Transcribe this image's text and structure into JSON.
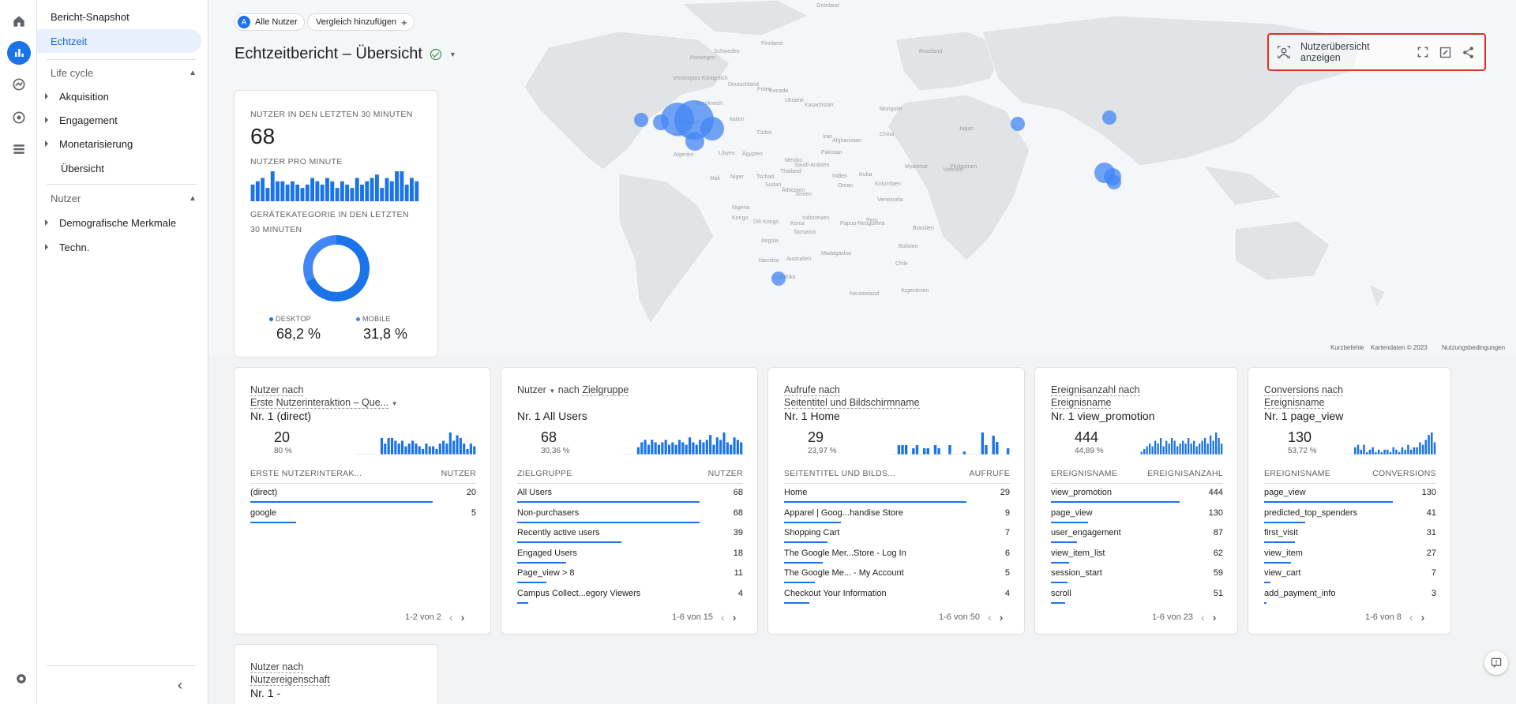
{
  "nav": {
    "snapshot": "Bericht-Snapshot",
    "realtime": "Echtzeit",
    "lifecycle": "Life cycle",
    "acquisition": "Akquisition",
    "engagement": "Engagement",
    "monetization": "Monetarisierung",
    "overview": "Übersicht",
    "users": "Nutzer",
    "demographics": "Demografische Merkmale",
    "tech": "Techn."
  },
  "header": {
    "segment_badge": "A",
    "segment": "Alle Nutzer",
    "compare": "Vergleich hinzufügen",
    "title": "Echtzeitbericht – Übersicht",
    "user_overview": "Nutzerübersicht anzeigen"
  },
  "map": {
    "footer_shortcuts": "Kurzbefehle",
    "footer_data": "Kartendaten © 2023",
    "footer_terms": "Nutzungsbedingungen",
    "labels": [
      "Grönland",
      "Schweden",
      "Finnland",
      "Norwegen",
      "Vereinigtes Königreich",
      "Deutschland",
      "Polen",
      "Ukraine",
      "Frankreich",
      "Spanien",
      "Italien",
      "Türkei",
      "Kasachstan",
      "Mongolei",
      "China",
      "Japan",
      "Iran",
      "Afghanistan",
      "Pakistan",
      "Indien",
      "Thailand",
      "Indonesien",
      "Papua-Neuguinea",
      "Australien",
      "Neuseeland",
      "Kanada",
      "USA",
      "Mexiko",
      "Kuba",
      "Venezuela",
      "Kolumbien",
      "Peru",
      "Brasilien",
      "Bolivien",
      "Chile",
      "Argentinien",
      "Algerien",
      "Libyen",
      "Ägypten",
      "Mali",
      "Niger",
      "Tschad",
      "Sudan",
      "Nigeria",
      "Äthiopien",
      "Kenia",
      "Tansania",
      "Angola",
      "Namibia",
      "Südafrika",
      "Madagaskar",
      "Saudi-Arabien",
      "Jemen",
      "Russland",
      "Oman",
      "Philippinen",
      "Vietnam",
      "Myanmar",
      "Marokko",
      "Kongo",
      "DR Kongo"
    ]
  },
  "kpi": {
    "users_label": "NUTZER IN DEN LETZTEN 30 MINUTEN",
    "users_value": "68",
    "per_minute_label": "NUTZER PRO MINUTE",
    "per_minute": [
      5,
      6,
      7,
      4,
      9,
      6,
      6,
      5,
      6,
      5,
      4,
      5,
      7,
      6,
      5,
      7,
      6,
      4,
      6,
      5,
      4,
      7,
      5,
      6,
      7,
      8,
      4,
      7,
      6,
      9,
      9,
      5,
      7,
      6
    ],
    "device_label_1": "GERÄTEKATEGORIE IN DEN LETZTEN",
    "device_label_2": "30 MINUTEN",
    "desktop_label": "DESKTOP",
    "desktop_value": "68,2 %",
    "desktop_fraction": 0.682,
    "mobile_label": "MOBILE",
    "mobile_value": "31,8 %",
    "colors": {
      "desktop": "#1a73e8",
      "mobile": "#4285f4"
    }
  },
  "cards": [
    {
      "t1": "Nutzer nach",
      "t2": "Erste Nutzerinteraktion – Que...",
      "top": "Nr. 1  (direct)",
      "num": "20",
      "pct": "80 %",
      "spark": [
        0,
        0,
        0,
        0,
        0,
        0,
        0,
        6,
        4,
        6,
        6,
        5,
        4,
        5,
        3,
        4,
        5,
        4,
        3,
        2,
        4,
        3,
        3,
        2,
        4,
        5,
        4,
        8,
        5,
        7,
        6,
        4,
        2,
        4,
        3
      ],
      "h1": "ERSTE NUTZERINTERAK...",
      "h2": "NUTZER",
      "rows": [
        {
          "k": "(direct)",
          "v": "20",
          "f": 1.0
        },
        {
          "k": "google",
          "v": "5",
          "f": 0.25
        }
      ],
      "pager": "1-2 von 2"
    },
    {
      "t0": "Nutzer",
      "t1": "nach",
      "t2": "Zielgruppe",
      "top": "Nr. 1  All Users",
      "num": "68",
      "pct": "30,36 %",
      "spark": [
        0,
        0,
        0,
        0,
        3,
        5,
        6,
        4,
        6,
        5,
        4,
        5,
        6,
        4,
        5,
        4,
        6,
        5,
        4,
        7,
        5,
        4,
        6,
        5,
        6,
        8,
        4,
        7,
        6,
        9,
        5,
        4,
        7,
        6,
        5
      ],
      "h1": "ZIELGRUPPE",
      "h2": "NUTZER",
      "rows": [
        {
          "k": "All Users",
          "v": "68",
          "f": 1.0
        },
        {
          "k": "Non-purchasers",
          "v": "68",
          "f": 1.0
        },
        {
          "k": "Recently active users",
          "v": "39",
          "f": 0.57
        },
        {
          "k": "Engaged Users",
          "v": "18",
          "f": 0.27
        },
        {
          "k": "Page_view > 8",
          "v": "11",
          "f": 0.16
        },
        {
          "k": "Campus Collect...egory Viewers",
          "v": "4",
          "f": 0.06
        }
      ],
      "pager": "1-6 von 15"
    },
    {
      "t1": "Aufrufe nach",
      "t2": "Seitentitel und Bildschirmname",
      "top": "Nr. 1  Home",
      "num": "29",
      "pct": "23,97 %",
      "spark": [
        0,
        0,
        3,
        3,
        3,
        0,
        2,
        3,
        0,
        2,
        2,
        0,
        3,
        2,
        0,
        0,
        3,
        0,
        0,
        0,
        1,
        0,
        0,
        0,
        0,
        7,
        3,
        0,
        6,
        4,
        0,
        0,
        2
      ],
      "h1": "SEITENTITEL UND BILDS...",
      "h2": "AUFRUFE",
      "rows": [
        {
          "k": "Home",
          "v": "29",
          "f": 1.0
        },
        {
          "k": "Apparel | Goog...handise Store",
          "v": "9",
          "f": 0.31
        },
        {
          "k": "Shopping Cart",
          "v": "7",
          "f": 0.24
        },
        {
          "k": "The Google Mer...Store - Log In",
          "v": "6",
          "f": 0.21
        },
        {
          "k": "The Google Me... - My Account",
          "v": "5",
          "f": 0.17
        },
        {
          "k": "Checkout Your Information",
          "v": "4",
          "f": 0.14
        }
      ],
      "pager": "1-6 von 50"
    },
    {
      "t1": "Ereignisanzahl nach",
      "t2": "Ereignisname",
      "top": "Nr. 1  view_promotion",
      "num": "444",
      "pct": "44,89 %",
      "spark": [
        0,
        0,
        1,
        2,
        3,
        4,
        3,
        5,
        4,
        6,
        3,
        5,
        4,
        6,
        5,
        3,
        4,
        5,
        4,
        6,
        4,
        5,
        3,
        4,
        5,
        6,
        4,
        7,
        5,
        8,
        6,
        4
      ],
      "h1": "EREIGNISNAME",
      "h2": "EREIGNISANZAHL",
      "rows": [
        {
          "k": "view_promotion",
          "v": "444",
          "f": 1.0
        },
        {
          "k": "page_view",
          "v": "130",
          "f": 0.29
        },
        {
          "k": "user_engagement",
          "v": "87",
          "f": 0.2
        },
        {
          "k": "view_item_list",
          "v": "62",
          "f": 0.14
        },
        {
          "k": "session_start",
          "v": "59",
          "f": 0.13
        },
        {
          "k": "scroll",
          "v": "51",
          "f": 0.11
        }
      ],
      "pager": "1-6 von 23"
    },
    {
      "t1": "Conversions nach",
      "t2": "Ereignisname",
      "top": "Nr. 1  page_view",
      "num": "130",
      "pct": "53,72 %",
      "spark": [
        0,
        0,
        3,
        4,
        2,
        4,
        1,
        2,
        3,
        1,
        2,
        1,
        2,
        2,
        1,
        3,
        2,
        1,
        3,
        2,
        4,
        2,
        3,
        3,
        5,
        4,
        6,
        8,
        9,
        5
      ],
      "h1": "EREIGNISNAME",
      "h2": "CONVERSIONS",
      "rows": [
        {
          "k": "page_view",
          "v": "130",
          "f": 1.0
        },
        {
          "k": "predicted_top_spenders",
          "v": "41",
          "f": 0.32
        },
        {
          "k": "first_visit",
          "v": "31",
          "f": 0.24
        },
        {
          "k": "view_item",
          "v": "27",
          "f": 0.21
        },
        {
          "k": "view_cart",
          "v": "7",
          "f": 0.05
        },
        {
          "k": "add_payment_info",
          "v": "3",
          "f": 0.02
        }
      ],
      "pager": "1-6 von 8"
    }
  ],
  "bottom_card": {
    "t1": "Nutzer nach",
    "t2": "Nutzereigenschaft",
    "top": "Nr. 1  -"
  }
}
